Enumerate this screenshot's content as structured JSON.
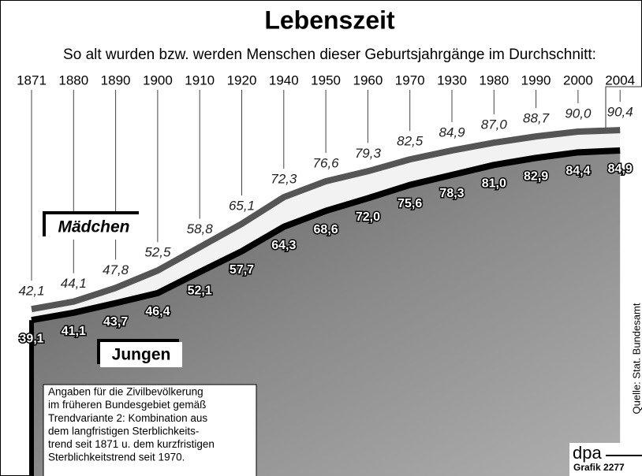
{
  "chart_data": {
    "type": "line",
    "title": "Lebenszeit",
    "subtitle": "So alt wurden bzw. werden Menschen dieser Geburtsjahrgänge im Durchschnitt:",
    "categories": [
      "1871",
      "1880",
      "1890",
      "1900",
      "1910",
      "1920",
      "1940",
      "1950",
      "1960",
      "1970",
      "1930",
      "1980",
      "1990",
      "2000",
      "2004"
    ],
    "series": [
      {
        "name": "Mädchen",
        "color": "#555555",
        "values": [
          42.1,
          44.1,
          47.8,
          52.5,
          58.8,
          65.1,
          72.3,
          76.6,
          79.3,
          82.5,
          84.9,
          87.0,
          88.7,
          90.0,
          90.4
        ],
        "value_labels": [
          "42,1",
          "44,1",
          "47,8",
          "52,5",
          "58,8",
          "65,1",
          "72,3",
          "76,6",
          "79,3",
          "82,5",
          "84,9",
          "87,0",
          "88,7",
          "90,0",
          "90,4"
        ]
      },
      {
        "name": "Jungen",
        "color": "#000000",
        "values": [
          39.1,
          41.1,
          43.7,
          46.4,
          52.1,
          57.7,
          64.3,
          68.6,
          72.0,
          75.6,
          78.3,
          81.0,
          82.9,
          84.4,
          84.9
        ],
        "value_labels": [
          "39,1",
          "41,1",
          "43,7",
          "46,4",
          "52,1",
          "57,7",
          "64,3",
          "68,6",
          "72,0",
          "75,6",
          "78,3",
          "81,0",
          "82,9",
          "84,4",
          "84,9"
        ]
      }
    ],
    "note": [
      "Angaben für die Zivilbevölkerung",
      "im früheren Bundesgebiet gemäß",
      "Trendvariante 2: Kombination aus",
      "dem langfristigen Sterblichkeits-",
      "trend seit 1871 u. dem kurzfristigen",
      "Sterblichkeitstrend seit 1970."
    ],
    "source": "Quelle: Stat. Bundesamt",
    "credit": "dpa",
    "graphic_id": "Grafik 2277"
  }
}
